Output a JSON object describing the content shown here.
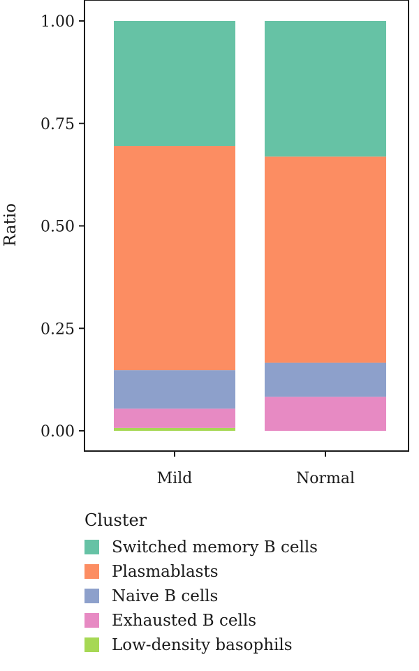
{
  "chart_data": {
    "type": "bar",
    "stacked": true,
    "ylabel": "Ratio",
    "xlabel": "",
    "ylim": [
      0,
      1
    ],
    "yticks": [
      "0.00",
      "0.25",
      "0.50",
      "0.75",
      "1.00"
    ],
    "categories": [
      "Mild",
      "Normal"
    ],
    "legend_title": "Cluster",
    "legend_placement": "bottom-left",
    "grid": false,
    "series": [
      {
        "name": "Low-density basophils",
        "color": "#A6D854",
        "values": [
          0.007,
          0.0
        ]
      },
      {
        "name": "Exhausted B cells",
        "color": "#E78AC3",
        "values": [
          0.047,
          0.083
        ]
      },
      {
        "name": "Naive B cells",
        "color": "#8DA0CB",
        "values": [
          0.094,
          0.083
        ]
      },
      {
        "name": "Plasmablasts",
        "color": "#FC8D62",
        "values": [
          0.547,
          0.503
        ]
      },
      {
        "name": "Switched memory B cells",
        "color": "#66C2A5",
        "values": [
          0.305,
          0.331
        ]
      }
    ],
    "legend_order": [
      "Switched memory B cells",
      "Plasmablasts",
      "Naive B cells",
      "Exhausted B cells",
      "Low-density basophils"
    ]
  }
}
